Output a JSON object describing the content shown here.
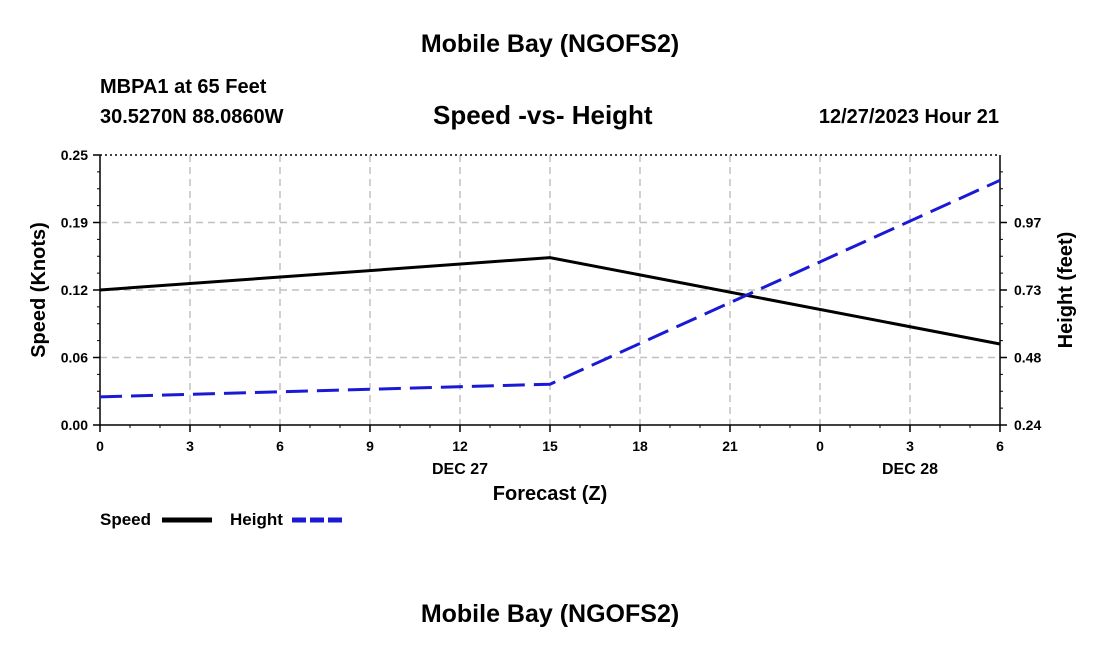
{
  "header": {
    "main_title": "Mobile Bay (NGOFS2)",
    "station": "MBPA1 at 65 Feet",
    "coords": "30.5270N  88.0860W",
    "subtitle": "Speed -vs- Height",
    "datetime": "12/27/2023 Hour 21"
  },
  "footer": {
    "title": "Mobile Bay (NGOFS2)"
  },
  "colors": {
    "speed": "#000000",
    "height": "#1a1ad6",
    "grid": "#c0c0c0"
  },
  "chart_data": {
    "type": "line",
    "title": "Speed -vs- Height",
    "xlabel": "Forecast (Z)",
    "ylabel": "Speed (Knots)",
    "y2label": "Height (feet)",
    "x_ticks": [
      "0",
      "3",
      "6",
      "9",
      "12",
      "15",
      "18",
      "21",
      "0",
      "3",
      "6"
    ],
    "date_labels": [
      {
        "text": "DEC 27",
        "x": 12
      },
      {
        "text": "DEC 28",
        "x": 27
      }
    ],
    "xlim": [
      0,
      30
    ],
    "ylim": [
      0,
      0.25
    ],
    "y_ticks": [
      "0.00",
      "0.06",
      "0.12",
      "0.19",
      "0.25"
    ],
    "y2lim": [
      0.24,
      1.2
    ],
    "y2_ticks": [
      "0.24",
      "0.48",
      "0.73",
      "0.97"
    ],
    "grid": true,
    "legend": {
      "placement": "bottom-left",
      "entries": [
        "Speed",
        "Height"
      ]
    },
    "series": [
      {
        "name": "Speed",
        "axis": "left",
        "style": "solid",
        "x": [
          0,
          15,
          30
        ],
        "values": [
          0.125,
          0.155,
          0.075
        ]
      },
      {
        "name": "Height",
        "axis": "right",
        "style": "dashed",
        "x": [
          0,
          15,
          30
        ],
        "values": [
          0.34,
          0.385,
          1.11
        ]
      }
    ]
  }
}
